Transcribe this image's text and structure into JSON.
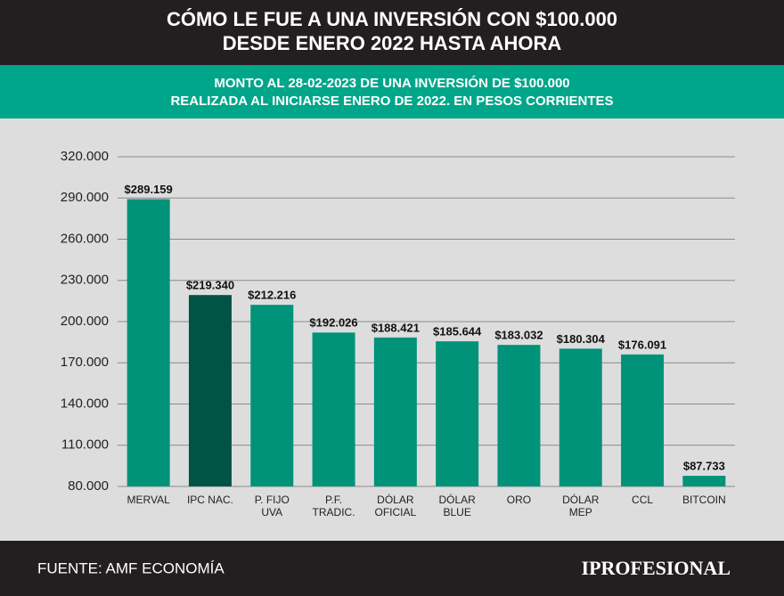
{
  "chart_data": {
    "type": "bar",
    "title": [
      "CÓMO LE FUE A UNA INVERSIÓN CON $100.000",
      "DESDE ENERO 2022 HASTA AHORA"
    ],
    "subtitle": [
      "MONTO AL 28-02-2023 DE UNA INVERSIÓN DE $100.000",
      "REALIZADA AL INICIARSE ENERO DE 2022. EN PESOS CORRIENTES"
    ],
    "categories": [
      [
        "MERVAL"
      ],
      [
        "IPC NAC."
      ],
      [
        "P. FIJO",
        "UVA"
      ],
      [
        "P.F.",
        "TRADIC."
      ],
      [
        "DÓLAR",
        "OFICIAL"
      ],
      [
        "DÓLAR",
        "BLUE"
      ],
      [
        "ORO"
      ],
      [
        "DÓLAR",
        "MEP"
      ],
      [
        "CCL"
      ],
      [
        "BITCOIN"
      ]
    ],
    "values": [
      289159,
      219340,
      212216,
      192026,
      188421,
      185644,
      183032,
      180304,
      176091,
      87733
    ],
    "value_labels": [
      "$289.159",
      "$219.340",
      "$212.216",
      "$192.026",
      "$188.421",
      "$185.644",
      "$183.032",
      "$180.304",
      "$176.091",
      "$87.733"
    ],
    "colors": [
      "#00937a",
      "#005443",
      "#00937a",
      "#00937a",
      "#00937a",
      "#00937a",
      "#00937a",
      "#00937a",
      "#00937a",
      "#00937a"
    ],
    "ylim": [
      80000,
      320000
    ],
    "yticks": [
      {
        "value": 80000,
        "label": "80.000"
      },
      {
        "value": 110000,
        "label": "110.000"
      },
      {
        "value": 140000,
        "label": "140.000"
      },
      {
        "value": 170000,
        "label": "170.000"
      },
      {
        "value": 200000,
        "label": "200.000"
      },
      {
        "value": 230000,
        "label": "230.000"
      },
      {
        "value": 260000,
        "label": "260.000"
      },
      {
        "value": 290000,
        "label": "290.000"
      },
      {
        "value": 320000,
        "label": "320.000"
      }
    ],
    "grid": true,
    "source": "FUENTE: AMF ECONOMÍA",
    "logo": "IPROFESIONAL"
  }
}
